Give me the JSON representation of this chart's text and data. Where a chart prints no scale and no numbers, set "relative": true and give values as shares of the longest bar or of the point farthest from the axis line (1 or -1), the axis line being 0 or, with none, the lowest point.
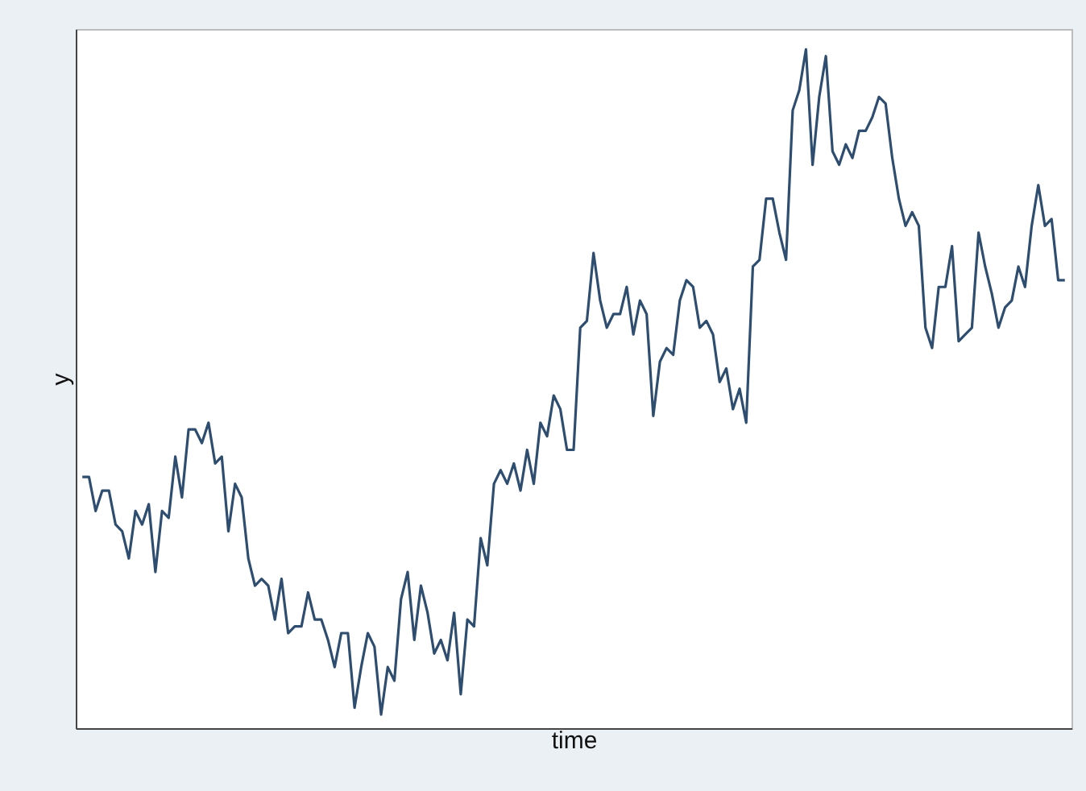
{
  "chart_data": {
    "type": "line",
    "relative": true,
    "xlabel": "time",
    "ylabel": "y",
    "categories": [
      null,
      null,
      null,
      null,
      null,
      null,
      null,
      null,
      null,
      null,
      null,
      null,
      null,
      null,
      null,
      null,
      null,
      null,
      null,
      null,
      null,
      null,
      null,
      null,
      null,
      null,
      null,
      null,
      null,
      null,
      null,
      null,
      null,
      null,
      null,
      null,
      null,
      null,
      null,
      null,
      null,
      null,
      null,
      null,
      null,
      null,
      null,
      null,
      null,
      null,
      null,
      null,
      null,
      null,
      null,
      null,
      null,
      null,
      null,
      null,
      null,
      null,
      null,
      null,
      null,
      null,
      null,
      null,
      null,
      null,
      null,
      null,
      null,
      null,
      null,
      null,
      null,
      null,
      null,
      null,
      null,
      null,
      null,
      null,
      null,
      null,
      null,
      null,
      null,
      null,
      null,
      null,
      null,
      null,
      null,
      null,
      null,
      null,
      null,
      null,
      null,
      null,
      null,
      null,
      null,
      null,
      null,
      null,
      null,
      null,
      null,
      null,
      null,
      null,
      null,
      null,
      null,
      null,
      null,
      null,
      null,
      null,
      null,
      null,
      null,
      null,
      null,
      null,
      null,
      null,
      null,
      null,
      null,
      null,
      null,
      null,
      null,
      null,
      null,
      null,
      null,
      null,
      null,
      null,
      null,
      null,
      null,
      null,
      null
    ],
    "series": [
      {
        "color": "#2e4d6f",
        "values": [
          0.37,
          0.37,
          0.32,
          0.35,
          0.35,
          0.3,
          0.29,
          0.25,
          0.32,
          0.3,
          0.33,
          0.23,
          0.32,
          0.31,
          0.4,
          0.34,
          0.44,
          0.44,
          0.42,
          0.45,
          0.39,
          0.4,
          0.29,
          0.36,
          0.34,
          0.25,
          0.21,
          0.22,
          0.21,
          0.16,
          0.22,
          0.14,
          0.15,
          0.15,
          0.2,
          0.16,
          0.16,
          0.13,
          0.09,
          0.14,
          0.14,
          0.03,
          0.09,
          0.14,
          0.12,
          0.02,
          0.09,
          0.07,
          0.19,
          0.23,
          0.13,
          0.21,
          0.17,
          0.11,
          0.13,
          0.1,
          0.17,
          0.05,
          0.16,
          0.15,
          0.28,
          0.24,
          0.36,
          0.38,
          0.36,
          0.39,
          0.35,
          0.41,
          0.36,
          0.45,
          0.43,
          0.49,
          0.47,
          0.41,
          0.41,
          0.59,
          0.6,
          0.7,
          0.63,
          0.59,
          0.61,
          0.61,
          0.65,
          0.58,
          0.63,
          0.61,
          0.46,
          0.54,
          0.56,
          0.55,
          0.63,
          0.66,
          0.65,
          0.59,
          0.6,
          0.58,
          0.51,
          0.53,
          0.47,
          0.5,
          0.45,
          0.68,
          0.69,
          0.78,
          0.78,
          0.73,
          0.69,
          0.91,
          0.94,
          1.0,
          0.83,
          0.93,
          0.99,
          0.85,
          0.83,
          0.86,
          0.84,
          0.88,
          0.88,
          0.9,
          0.93,
          0.92,
          0.84,
          0.78,
          0.74,
          0.76,
          0.74,
          0.59,
          0.56,
          0.65,
          0.65,
          0.71,
          0.57,
          0.58,
          0.59,
          0.73,
          0.68,
          0.64,
          0.59,
          0.62,
          0.63,
          0.68,
          0.65,
          0.74,
          0.8,
          0.74,
          0.75,
          0.66,
          0.66
        ]
      }
    ]
  }
}
